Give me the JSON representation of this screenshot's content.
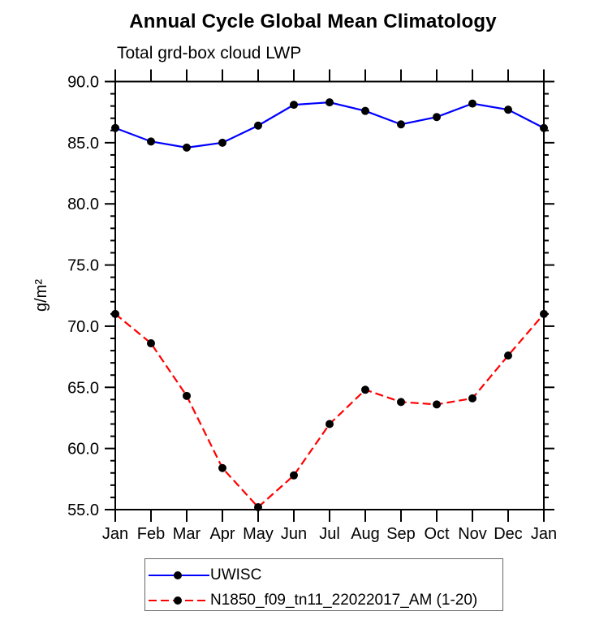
{
  "chart_data": {
    "type": "line",
    "title": "Annual Cycle Global Mean Climatology",
    "subtitle": "Total grd-box cloud LWP",
    "xlabel": "",
    "ylabel": "g/m²",
    "categories": [
      "Jan",
      "Feb",
      "Mar",
      "Apr",
      "May",
      "Jun",
      "Jul",
      "Aug",
      "Sep",
      "Oct",
      "Nov",
      "Dec",
      "Jan"
    ],
    "ylim": [
      55.0,
      90.0
    ],
    "ytick_step_major": 5,
    "ytick_step_minor": 1,
    "grid": false,
    "legend_position": "bottom-outside",
    "frame_color": "#000000",
    "marker_color": "#000000",
    "marker_shape": "filled-circle",
    "series": [
      {
        "name": "UWISC",
        "color": "#0000ff",
        "line_style": "solid",
        "values": [
          86.2,
          85.1,
          84.6,
          85.0,
          86.4,
          88.1,
          88.3,
          87.6,
          86.5,
          87.1,
          88.2,
          87.7,
          86.2
        ]
      },
      {
        "name": "N1850_f09_tn11_22022017_AM (1-20)",
        "color": "#ff0000",
        "line_style": "dashed",
        "values": [
          71.0,
          68.6,
          64.3,
          58.4,
          55.2,
          57.8,
          62.0,
          64.8,
          63.8,
          63.6,
          64.1,
          67.6,
          71.0
        ]
      }
    ]
  }
}
